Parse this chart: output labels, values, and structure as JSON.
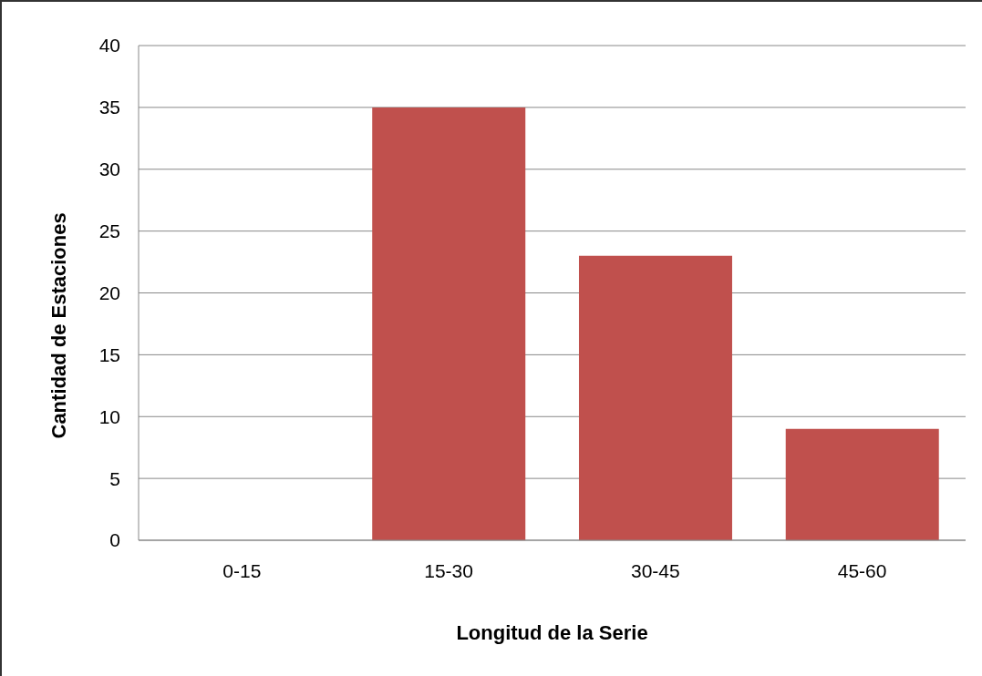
{
  "chart_data": {
    "type": "bar",
    "xlabel": "Longitud de la Serie",
    "ylabel": "Cantidad de Estaciones",
    "categories": [
      "0-15",
      "15-30",
      "30-45",
      "45-60"
    ],
    "values": [
      0,
      35,
      23,
      9
    ],
    "color": "#c0504d",
    "ylim": [
      0,
      40
    ],
    "yticks": [
      0,
      5,
      10,
      15,
      20,
      25,
      30,
      35,
      40
    ],
    "grid": "y"
  }
}
